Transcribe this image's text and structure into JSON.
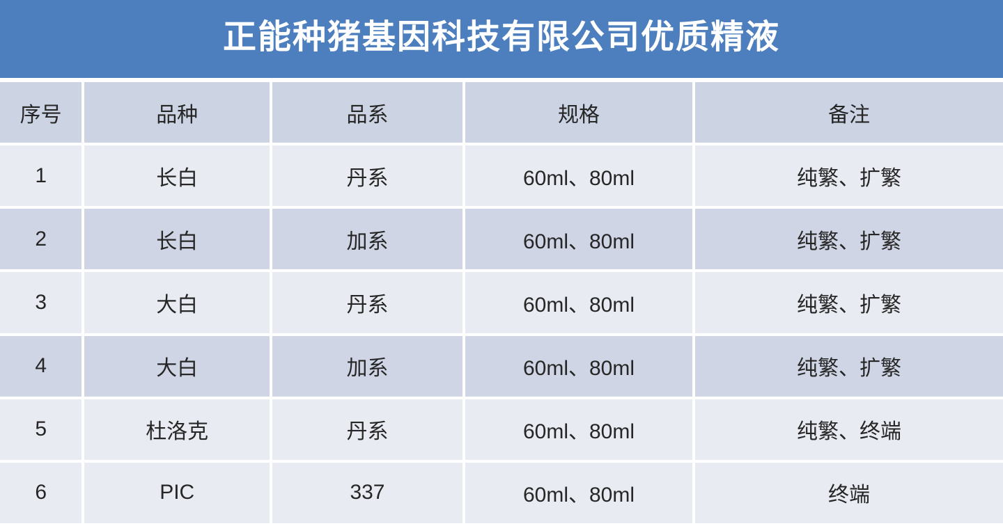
{
  "title": "正能种猪基因科技有限公司优质精液",
  "colors": {
    "title_background": "#4d7fbe",
    "title_text": "#ffffff",
    "header_row_background": "#ccd3e3",
    "row_shaded_background": "#cfd5e5",
    "row_light_background": "#e9ebf2",
    "body_text": "#262626",
    "gridline": "#ffffff"
  },
  "table": {
    "columns": [
      "序号",
      "品种",
      "品系",
      "规格",
      "备注"
    ],
    "rows": [
      {
        "no": "1",
        "breed": "长白",
        "line": "丹系",
        "spec": "60ml、80ml",
        "note": "纯繁、扩繁"
      },
      {
        "no": "2",
        "breed": "长白",
        "line": "加系",
        "spec": "60ml、80ml",
        "note": "纯繁、扩繁"
      },
      {
        "no": "3",
        "breed": "大白",
        "line": "丹系",
        "spec": "60ml、80ml",
        "note": "纯繁、扩繁"
      },
      {
        "no": "4",
        "breed": "大白",
        "line": "加系",
        "spec": "60ml、80ml",
        "note": "纯繁、扩繁"
      },
      {
        "no": "5",
        "breed": "杜洛克",
        "line": "丹系",
        "spec": "60ml、80ml",
        "note": "纯繁、终端"
      },
      {
        "no": "6",
        "breed": "PIC",
        "line": "337",
        "spec": "60ml、80ml",
        "note": "终端"
      }
    ]
  }
}
